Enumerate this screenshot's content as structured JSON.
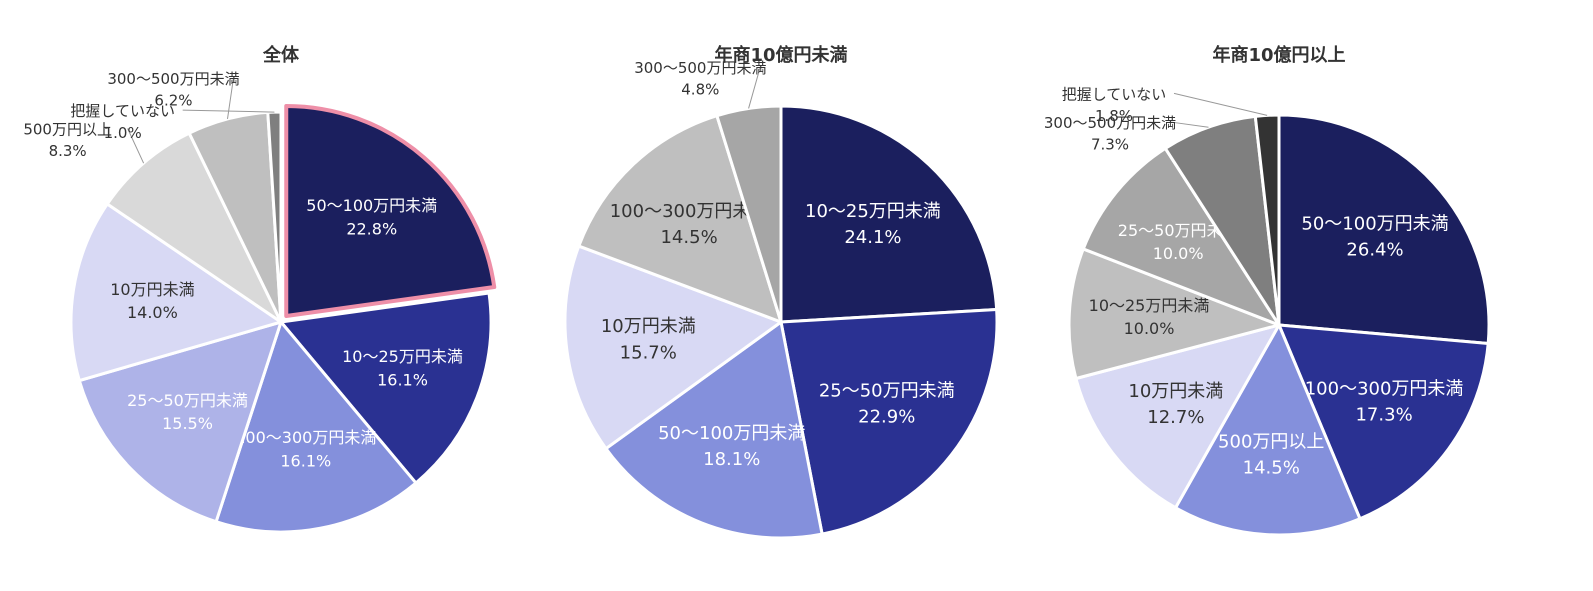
{
  "chart_data": [
    {
      "type": "pie",
      "title": "全体",
      "categories": [
        "50～100万円未満",
        "10～25万円未満",
        "100～300万円未満",
        "25～50万円未満",
        "10万円未満",
        "500万円以上",
        "300～500万円未満",
        "把握していない"
      ],
      "values": [
        22.8,
        16.1,
        16.1,
        15.5,
        14.0,
        8.3,
        6.2,
        1.0
      ],
      "value_labels": [
        "22.8%",
        "16.1%",
        "16.1%",
        "15.5%",
        "14.0%",
        "8.3%",
        "6.2%",
        "1.0%"
      ],
      "colors": [
        "#1b1f5e",
        "#2a3192",
        "#8490dc",
        "#aeb3e8",
        "#d8d9f4",
        "#d9d9d9",
        "#bfbfbf",
        "#7f7f7f"
      ],
      "highlight": {
        "slice": 0,
        "color": "#ee8fa8"
      }
    },
    {
      "type": "pie",
      "title": "年商10億円未満",
      "categories": [
        "10～25万円未満",
        "25～50万円未満",
        "50～100万円未満",
        "10万円未満",
        "100～300万円未満",
        "300～500万円未満"
      ],
      "values": [
        24.1,
        22.9,
        18.1,
        15.7,
        14.5,
        4.8
      ],
      "value_labels": [
        "24.1%",
        "22.9%",
        "18.1%",
        "15.7%",
        "14.5%",
        "4.8%"
      ],
      "colors": [
        "#1b1f5e",
        "#2a3192",
        "#8490dc",
        "#d8d9f4",
        "#bfbfbf",
        "#a6a6a6"
      ]
    },
    {
      "type": "pie",
      "title": "年商10億円以上",
      "categories": [
        "50～100万円未満",
        "100～300万円未満",
        "500万円以上",
        "10万円未満",
        "10～25万円未満",
        "25～50万円未満",
        "300～500万円未満",
        "把握していない"
      ],
      "values": [
        26.4,
        17.3,
        14.5,
        12.7,
        10.0,
        10.0,
        7.3,
        1.8
      ],
      "value_labels": [
        "26.4%",
        "17.3%",
        "14.5%",
        "12.7%",
        "10.0%",
        "10.0%",
        "7.3%",
        "1.8%"
      ],
      "colors": [
        "#1b1f5e",
        "#2a3192",
        "#8490dc",
        "#d8d9f4",
        "#bfbfbf",
        "#a6a6a6",
        "#7f7f7f",
        "#333333"
      ]
    }
  ]
}
